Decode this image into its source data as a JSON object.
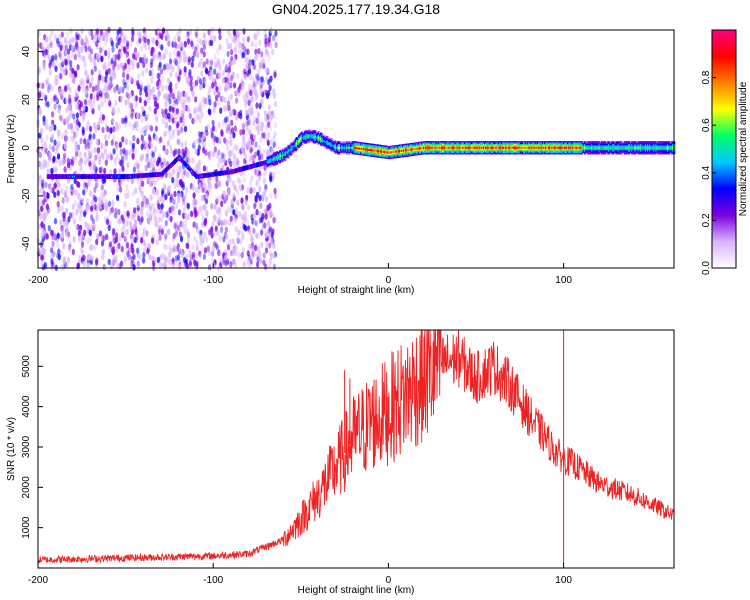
{
  "figure_title": "GN04.2025.177.19.34.G18",
  "chart_data": [
    {
      "type": "heatmap",
      "title": "GN04.2025.177.19.34.G18",
      "xlabel": "Height of straight line (km)",
      "ylabel": "Frequency (Hz)",
      "xlim": [
        -200,
        163
      ],
      "ylim": [
        -50,
        49
      ],
      "xticks": [
        -200,
        -100,
        0,
        100
      ],
      "yticks": [
        -40,
        -20,
        0,
        20,
        40
      ],
      "colorbar": {
        "label": "Normalized spectral amplitude",
        "range": [
          0,
          1
        ],
        "ticks": [
          0.0,
          0.2,
          0.4,
          0.6,
          0.8
        ],
        "tick_labels": [
          "0.0",
          "0.2",
          "0.4",
          "0.6",
          "0.8"
        ],
        "colormap": [
          "#ffffff",
          "#d9b3ff",
          "#7b00e0",
          "#0000ff",
          "#00c8ff",
          "#00ff66",
          "#ffff00",
          "#ff7f00",
          "#ff0000",
          "#ff0080"
        ]
      },
      "ridge": {
        "x": [
          -190,
          -170,
          -150,
          -130,
          -120,
          -110,
          -100,
          -90,
          -80,
          -70,
          -60,
          -55,
          -50,
          -45,
          -40,
          -35,
          -30,
          -25,
          -20,
          -10,
          0,
          20,
          40,
          60,
          80,
          90,
          100,
          120,
          140,
          163
        ],
        "y": [
          -12,
          -12,
          -12,
          -11,
          -4,
          -12,
          -11,
          -10,
          -8,
          -6,
          -3,
          0,
          4,
          5,
          4,
          2,
          0,
          0,
          0,
          -1,
          -2,
          0,
          0,
          0,
          0,
          0,
          0,
          0,
          0,
          0
        ]
      },
      "noise_region": [
        -200,
        -70
      ]
    },
    {
      "type": "line",
      "xlabel": "Height of straight line (km)",
      "ylabel": "SNR (10 * v/v)",
      "xlim": [
        -200,
        163
      ],
      "ylim": [
        0,
        5900
      ],
      "xticks": [
        -200,
        -100,
        0,
        100
      ],
      "yticks": [
        1000,
        2000,
        3000,
        4000,
        5000
      ],
      "color": "#ee2222",
      "envelope": {
        "x": [
          -200,
          -150,
          -100,
          -80,
          -60,
          -50,
          -40,
          -30,
          -20,
          -10,
          0,
          10,
          20,
          30,
          40,
          50,
          60,
          70,
          80,
          90,
          95,
          100,
          105,
          120,
          140,
          163
        ],
        "y": [
          200,
          250,
          300,
          350,
          700,
          1200,
          1800,
          2500,
          3200,
          3600,
          3900,
          4300,
          4700,
          5100,
          5200,
          4700,
          5000,
          4500,
          3800,
          3200,
          2900,
          2700,
          2600,
          2100,
          1800,
          1300
        ]
      },
      "spikes": [
        {
          "x": -25,
          "y": 4900
        },
        {
          "x": -22,
          "y": 4700
        },
        {
          "x": -10,
          "y": 4350
        },
        {
          "x": 100,
          "y": 5900
        },
        {
          "x": 100,
          "y": 100
        }
      ]
    }
  ]
}
